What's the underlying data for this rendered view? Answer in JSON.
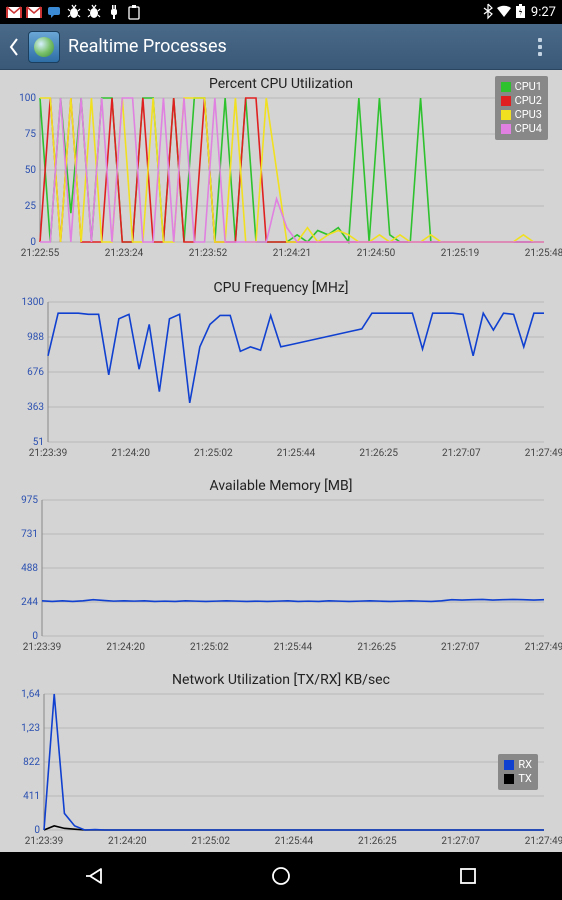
{
  "status": {
    "time": "9:27",
    "notif_icons": [
      "gmail",
      "gmail",
      "chat",
      "bug1",
      "bug2",
      "plug",
      "clip"
    ]
  },
  "header": {
    "title": "Realtime Processes"
  },
  "bg_color": "#d4d4d4",
  "grid_color": "#b8b8b8",
  "axis_color": "#888888",
  "ylabel_color": "#2a4fb0",
  "xlabel_color": "#444444",
  "charts": {
    "cpu_util": {
      "title": "Percent CPU Utilization",
      "yticks": [
        0,
        25,
        50,
        75,
        100
      ],
      "ylim": [
        0,
        100
      ],
      "xticks": [
        "21:22:55",
        "21:23:24",
        "21:23:52",
        "21:24:21",
        "21:24:50",
        "21:25:19",
        "21:25:48"
      ],
      "legend": [
        {
          "label": "CPU1",
          "color": "#2ec22e"
        },
        {
          "label": "CPU2",
          "color": "#e02020"
        },
        {
          "label": "CPU3",
          "color": "#f0e020"
        },
        {
          "label": "CPU4",
          "color": "#e080e0"
        }
      ],
      "series": {
        "cpu1": {
          "color": "#2ec22e",
          "y": [
            100,
            0,
            100,
            20,
            100,
            0,
            100,
            100,
            0,
            0,
            100,
            100,
            0,
            100,
            0,
            100,
            100,
            0,
            100,
            0,
            100,
            0,
            0,
            0,
            0,
            5,
            0,
            8,
            5,
            10,
            0,
            100,
            0,
            100,
            5,
            0,
            0,
            100,
            0,
            0,
            0,
            0,
            0,
            0,
            0,
            0,
            0,
            0,
            0,
            0
          ]
        },
        "cpu2": {
          "color": "#e02020",
          "y": [
            0,
            100,
            0,
            100,
            0,
            0,
            0,
            100,
            0,
            0,
            100,
            0,
            0,
            100,
            0,
            0,
            100,
            0,
            0,
            0,
            100,
            100,
            0,
            0,
            0,
            0,
            0,
            0,
            0,
            0,
            0,
            0,
            0,
            0,
            0,
            0,
            0,
            0,
            0,
            0,
            0,
            0,
            0,
            0,
            0,
            0,
            0,
            0,
            0,
            0
          ]
        },
        "cpu3": {
          "color": "#f0e020",
          "y": [
            100,
            100,
            0,
            100,
            0,
            100,
            0,
            0,
            100,
            0,
            0,
            100,
            0,
            0,
            100,
            100,
            100,
            0,
            0,
            100,
            0,
            0,
            100,
            50,
            0,
            0,
            10,
            0,
            5,
            8,
            5,
            0,
            0,
            5,
            0,
            5,
            0,
            0,
            5,
            0,
            0,
            0,
            0,
            0,
            0,
            0,
            0,
            5,
            0,
            0
          ]
        },
        "cpu4": {
          "color": "#e080e0",
          "y": [
            0,
            0,
            100,
            0,
            100,
            0,
            100,
            0,
            100,
            100,
            0,
            0,
            100,
            0,
            100,
            0,
            0,
            100,
            0,
            0,
            0,
            0,
            0,
            30,
            10,
            0,
            0,
            0,
            0,
            0,
            0,
            0,
            0,
            0,
            0,
            0,
            0,
            0,
            0,
            0,
            0,
            0,
            0,
            0,
            0,
            0,
            0,
            0,
            0,
            0
          ]
        }
      }
    },
    "cpu_freq": {
      "title": "CPU Frequency [MHz]",
      "yticks": [
        51,
        363,
        676,
        988,
        1300
      ],
      "ylim": [
        51,
        1300
      ],
      "xticks": [
        "21:23:39",
        "21:24:20",
        "21:25:02",
        "21:25:44",
        "21:26:25",
        "21:27:07",
        "21:27:49"
      ],
      "color": "#1040d0",
      "y": [
        820,
        1200,
        1200,
        1200,
        1190,
        1190,
        650,
        1150,
        1190,
        700,
        1100,
        500,
        1150,
        1190,
        400,
        900,
        1100,
        1180,
        1180,
        860,
        900,
        870,
        1180,
        900,
        920,
        940,
        960,
        980,
        1000,
        1020,
        1040,
        1060,
        1200,
        1200,
        1200,
        1200,
        1200,
        880,
        1200,
        1200,
        1200,
        1190,
        820,
        1200,
        1050,
        1200,
        1190,
        900,
        1200,
        1200
      ]
    },
    "memory": {
      "title": "Available Memory [MB]",
      "yticks": [
        0,
        244,
        488,
        731,
        975
      ],
      "ylim": [
        0,
        975
      ],
      "xticks": [
        "21:23:39",
        "21:24:20",
        "21:25:02",
        "21:25:44",
        "21:26:25",
        "21:27:07",
        "21:27:49"
      ],
      "color": "#1040d0",
      "y": [
        252,
        248,
        252,
        248,
        252,
        260,
        255,
        250,
        252,
        250,
        252,
        248,
        250,
        248,
        252,
        250,
        248,
        250,
        252,
        250,
        248,
        250,
        248,
        250,
        252,
        248,
        250,
        248,
        252,
        250,
        248,
        250,
        252,
        250,
        248,
        250,
        252,
        250,
        248,
        252,
        260,
        258,
        260,
        262,
        258,
        260,
        262,
        260,
        258,
        260
      ]
    },
    "network": {
      "title": "Network Utilization [TX/RX] KB/sec",
      "yticks": [
        0,
        411,
        822,
        "1,23",
        "1,64"
      ],
      "ylim": [
        0,
        1640
      ],
      "xticks": [
        "21:23:39",
        "21:24:20",
        "21:25:02",
        "21:25:44",
        "21:26:25",
        "21:27:07",
        "21:27:49"
      ],
      "legend": [
        {
          "label": "RX",
          "color": "#1040d0"
        },
        {
          "label": "TX",
          "color": "#000000"
        }
      ],
      "rx": {
        "color": "#1040d0",
        "y": [
          0,
          1640,
          200,
          50,
          0,
          5,
          0,
          0,
          0,
          0,
          0,
          0,
          0,
          0,
          0,
          0,
          0,
          0,
          0,
          0,
          0,
          0,
          0,
          0,
          0,
          0,
          0,
          0,
          0,
          0,
          0,
          0,
          0,
          0,
          0,
          0,
          0,
          0,
          0,
          0,
          0,
          0,
          0,
          0,
          0,
          0,
          0,
          0,
          0,
          0
        ]
      },
      "tx": {
        "color": "#000000",
        "y": [
          0,
          50,
          20,
          10,
          0,
          0,
          0,
          0,
          0,
          0,
          0,
          0,
          0,
          0,
          0,
          0,
          0,
          0,
          0,
          0,
          0,
          0,
          0,
          0,
          0,
          0,
          0,
          0,
          0,
          0,
          0,
          0,
          0,
          0,
          0,
          0,
          0,
          0,
          0,
          0,
          0,
          0,
          0,
          0,
          0,
          0,
          0,
          0,
          0,
          0
        ]
      }
    }
  }
}
